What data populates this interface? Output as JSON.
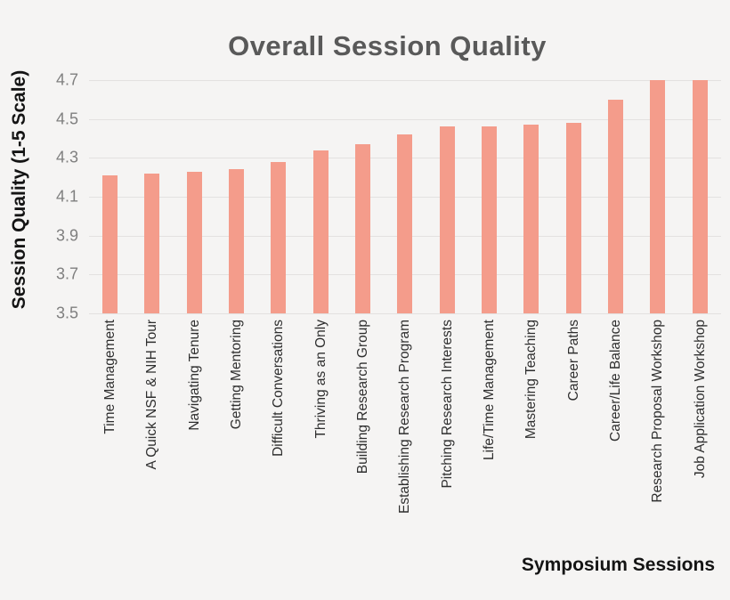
{
  "chart_data": {
    "type": "bar",
    "title": "Overall Session Quality",
    "xlabel": "Symposium Sessions",
    "ylabel": "Session Quality (1-5 Scale)",
    "categories": [
      "Time Management",
      "A Quick NSF & NIH Tour",
      "Navigating Tenure",
      "Getting Mentoring",
      "Difficult Conversations",
      "Thriving as an Only",
      "Building Research Group",
      "Establishing Research Program",
      "Pitching Research Interests",
      "Life/Time Management",
      "Mastering Teaching",
      "Career Paths",
      "Career/Life Balance",
      "Research Proposal Workshop",
      "Job Application Workshop"
    ],
    "values": [
      4.21,
      4.22,
      4.23,
      4.24,
      4.28,
      4.34,
      4.37,
      4.42,
      4.46,
      4.46,
      4.47,
      4.48,
      4.6,
      4.7,
      4.7
    ],
    "ylim": [
      3.5,
      4.7
    ],
    "yticks": [
      "4.7",
      "4.5",
      "4.3",
      "4.1",
      "3.9",
      "3.7",
      "3.5"
    ],
    "grid": "horizontal",
    "legend": "none",
    "colors": {
      "bar": "#f49c8b",
      "background": "#f5f4f3",
      "gridline": "#e3e1e0",
      "title": "#595959",
      "tick_label": "#7f7f7f",
      "axis_label": "#141414",
      "category_label": "#2e2e2e"
    }
  }
}
